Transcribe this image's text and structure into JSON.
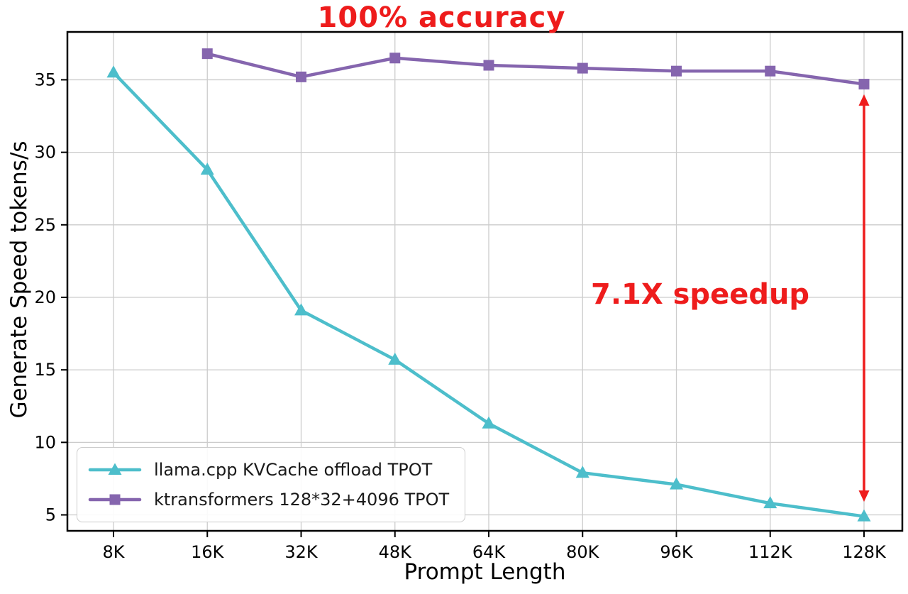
{
  "chart_data": {
    "type": "line",
    "title_annotation": "100% accuracy",
    "speedup_annotation": "7.1X speedup",
    "xlabel": "Prompt Length",
    "ylabel": "Generate Speed tokens/s",
    "categories": [
      "8K",
      "16K",
      "32K",
      "48K",
      "64K",
      "80K",
      "96K",
      "112K",
      "128K"
    ],
    "series": [
      {
        "name": "llama.cpp KVCache offload TPOT",
        "color": "#4dbecb",
        "marker": "triangle",
        "values": [
          35.5,
          28.8,
          19.1,
          15.7,
          11.3,
          7.9,
          7.1,
          5.8,
          4.9
        ]
      },
      {
        "name": "ktransformers 128*32+4096 TPOT",
        "color": "#8565ae",
        "marker": "square",
        "values": [
          null,
          36.8,
          35.2,
          36.5,
          36.0,
          35.8,
          35.6,
          35.6,
          34.7
        ]
      }
    ],
    "yticks": [
      5,
      10,
      15,
      20,
      25,
      30,
      35
    ],
    "ylim": [
      3.9,
      38.3
    ],
    "grid": true,
    "legend_position": "lower left",
    "annotation_color": "#ee1c1c",
    "grid_color": "#cccccc",
    "arrow": {
      "category": "128K",
      "from": 34.0,
      "to": 5.9
    }
  }
}
